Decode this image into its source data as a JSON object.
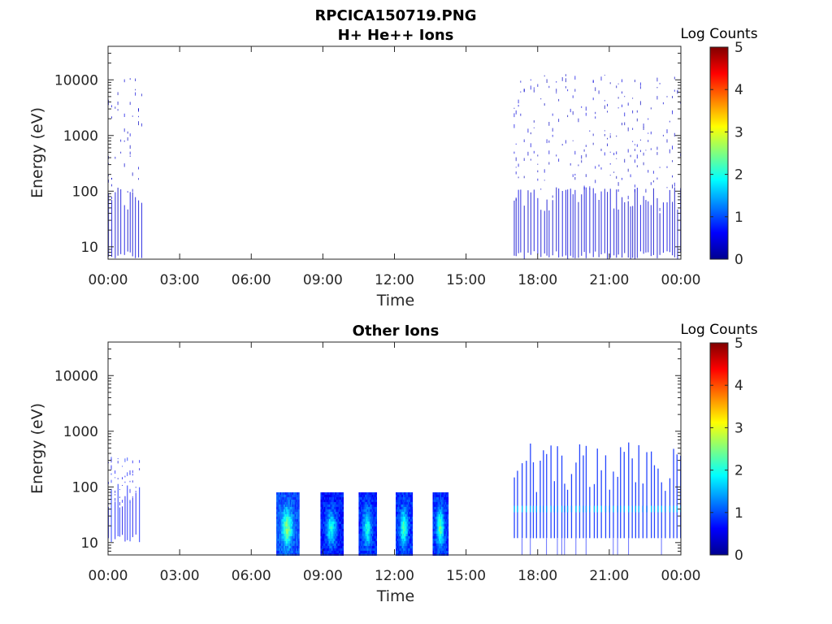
{
  "figure": {
    "title": "RPCICA150719.PNG"
  },
  "chart_data": [
    {
      "type": "heatmap",
      "title": "H+ He++ Ions",
      "xlabel": "Time",
      "ylabel": "Energy (eV)",
      "x_tick_labels": [
        "00:00",
        "03:00",
        "06:00",
        "09:00",
        "12:00",
        "15:00",
        "18:00",
        "21:00",
        "00:00"
      ],
      "x_ticks_hours": [
        0,
        3,
        6,
        9,
        12,
        15,
        18,
        21,
        24
      ],
      "xlim_hours": [
        0,
        24
      ],
      "y_scale": "log",
      "ylim": [
        6,
        40000
      ],
      "y_ticks": [
        10,
        100,
        1000,
        10000
      ],
      "y_tick_labels": [
        "10",
        "100",
        "1000",
        "10000"
      ],
      "colorbar": {
        "label": "Log Counts",
        "range": [
          0,
          5
        ],
        "ticks": [
          "0",
          "1",
          "2",
          "3",
          "4",
          "5"
        ],
        "colormap": "jet"
      },
      "grid": false,
      "regions": [
        {
          "t_start": 0.0,
          "t_end": 1.4,
          "e_min": 6,
          "e_max": 11000,
          "log_counts": 0.5,
          "style": "sparse"
        },
        {
          "t_start": 17.0,
          "t_end": 24.0,
          "e_min": 6,
          "e_max": 13000,
          "log_counts": 0.5,
          "style": "sparse"
        }
      ]
    },
    {
      "type": "heatmap",
      "title": "Other Ions",
      "xlabel": "Time",
      "ylabel": "Energy (eV)",
      "x_tick_labels": [
        "00:00",
        "03:00",
        "06:00",
        "09:00",
        "12:00",
        "15:00",
        "18:00",
        "21:00",
        "00:00"
      ],
      "x_ticks_hours": [
        0,
        3,
        6,
        9,
        12,
        15,
        18,
        21,
        24
      ],
      "xlim_hours": [
        0,
        24
      ],
      "y_scale": "log",
      "ylim": [
        6,
        40000
      ],
      "y_ticks": [
        10,
        100,
        1000,
        10000
      ],
      "y_tick_labels": [
        "10",
        "100",
        "1000",
        "10000"
      ],
      "colorbar": {
        "label": "Log Counts",
        "range": [
          0,
          5
        ],
        "ticks": [
          "0",
          "1",
          "2",
          "3",
          "4",
          "5"
        ],
        "colormap": "jet"
      },
      "grid": false,
      "regions": [
        {
          "t_start": 0.0,
          "t_end": 1.4,
          "e_min": 10,
          "e_max": 350,
          "log_counts": 0.8,
          "style": "sparse"
        },
        {
          "t_start": 7.05,
          "t_end": 8.0,
          "e_min": 6,
          "e_max": 80,
          "log_counts": 1.6,
          "peak_log_counts": 2.5,
          "style": "block"
        },
        {
          "t_start": 8.9,
          "t_end": 9.85,
          "e_min": 6,
          "e_max": 80,
          "log_counts": 1.2,
          "peak_log_counts": 1.9,
          "style": "block"
        },
        {
          "t_start": 10.5,
          "t_end": 11.25,
          "e_min": 6,
          "e_max": 80,
          "log_counts": 1.3,
          "peak_log_counts": 2.0,
          "style": "block"
        },
        {
          "t_start": 12.05,
          "t_end": 12.75,
          "e_min": 6,
          "e_max": 80,
          "log_counts": 1.4,
          "peak_log_counts": 2.2,
          "style": "block"
        },
        {
          "t_start": 13.6,
          "t_end": 14.25,
          "e_min": 6,
          "e_max": 80,
          "log_counts": 1.4,
          "peak_log_counts": 2.3,
          "style": "block"
        },
        {
          "t_start": 17.0,
          "t_end": 24.0,
          "e_min": 6,
          "e_max": 800,
          "log_counts": 0.9,
          "peak_log_counts": 1.6,
          "style": "striped"
        }
      ]
    }
  ]
}
